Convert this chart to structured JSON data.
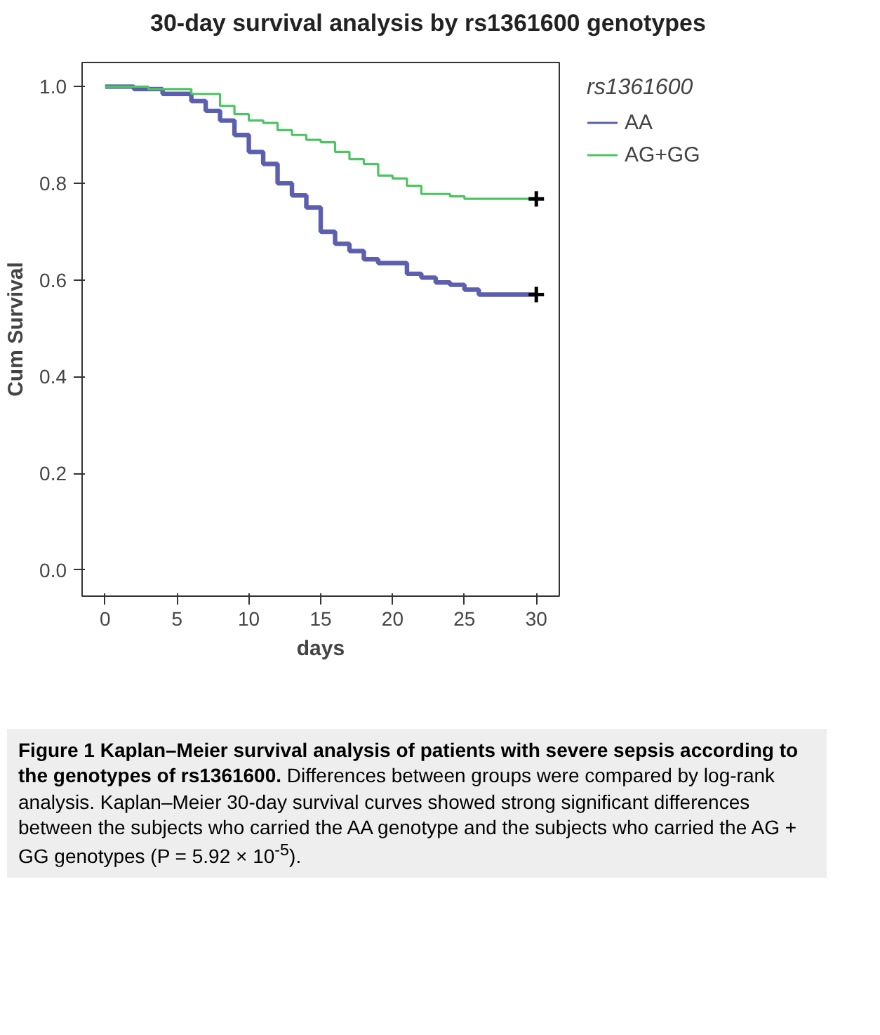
{
  "chart_data": {
    "type": "step",
    "title": "30-day survival analysis by rs1361600 genotypes",
    "xlabel": "days",
    "ylabel": "Cum Survival",
    "legend_title": "rs1361600",
    "legend": "right",
    "grid": false,
    "marker": "none",
    "line_style": "solid",
    "xlim": [
      -1.6,
      31.6
    ],
    "ylim": [
      -0.054,
      1.05
    ],
    "xticks": [
      0,
      5,
      10,
      15,
      20,
      25,
      30
    ],
    "yticks": [
      {
        "value": 0,
        "label": "0.0"
      },
      {
        "value": 0.2,
        "label": "0.2"
      },
      {
        "value": 0.4,
        "label": "0.4"
      },
      {
        "value": 0.6,
        "label": "0.6"
      },
      {
        "value": 0.8,
        "label": "0.8"
      },
      {
        "value": 1,
        "label": "1.0"
      }
    ],
    "series": [
      {
        "name": "AA",
        "color": "#5c5fae",
        "x": [
          0,
          2,
          4,
          6,
          7,
          8,
          9,
          10,
          11,
          12,
          13,
          14,
          15,
          16,
          17,
          18,
          19,
          21,
          22,
          23,
          24,
          25,
          26,
          30
        ],
        "values": [
          1,
          0.995,
          0.985,
          0.97,
          0.95,
          0.93,
          0.9,
          0.865,
          0.84,
          0.8,
          0.775,
          0.75,
          0.7,
          0.675,
          0.66,
          0.643,
          0.635,
          0.613,
          0.605,
          0.595,
          0.59,
          0.58,
          0.57,
          0.57
        ]
      },
      {
        "name": "AG+GG",
        "color": "#4cc462",
        "x": [
          0,
          3,
          6,
          8,
          9,
          10,
          11,
          12,
          13,
          14,
          15,
          16,
          17,
          18,
          19,
          20,
          21,
          22,
          24,
          25,
          30
        ],
        "values": [
          1,
          0.995,
          0.985,
          0.96,
          0.943,
          0.93,
          0.925,
          0.91,
          0.9,
          0.89,
          0.885,
          0.865,
          0.85,
          0.84,
          0.816,
          0.81,
          0.795,
          0.778,
          0.773,
          0.768,
          0.768
        ]
      }
    ],
    "annotations": [
      "Figure 1 Kaplan–Meier survival analysis of patients with severe sepsis according to the genotypes of rs1361600.",
      "Differences between groups were compared by log-rank analysis. Kaplan–Meier 30-day survival curves showed strong significant differences between the subjects who carried the AA genotype and the subjects who carried the AG + GG genotypes (P = 5.92 × 10$^{-5}$)."
    ]
  }
}
